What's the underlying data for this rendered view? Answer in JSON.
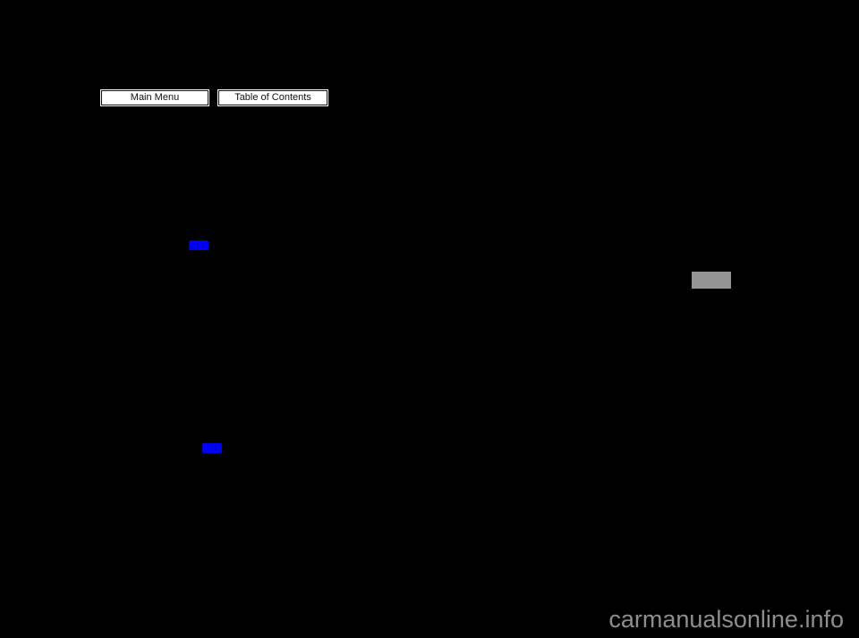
{
  "page": {
    "background_color": "#000000",
    "watermark_text": "carmanualsonline.info",
    "watermark_color": "#8e8e8e"
  },
  "toolbar": {
    "buttons": [
      {
        "label": "Main Menu"
      },
      {
        "label": "Table of Contents"
      }
    ],
    "button_bg": "#ffffff",
    "button_text_color": "#111111"
  },
  "links": {
    "highlight_color": "#0000f2",
    "count": 2
  },
  "redaction": {
    "color": "#949494"
  }
}
